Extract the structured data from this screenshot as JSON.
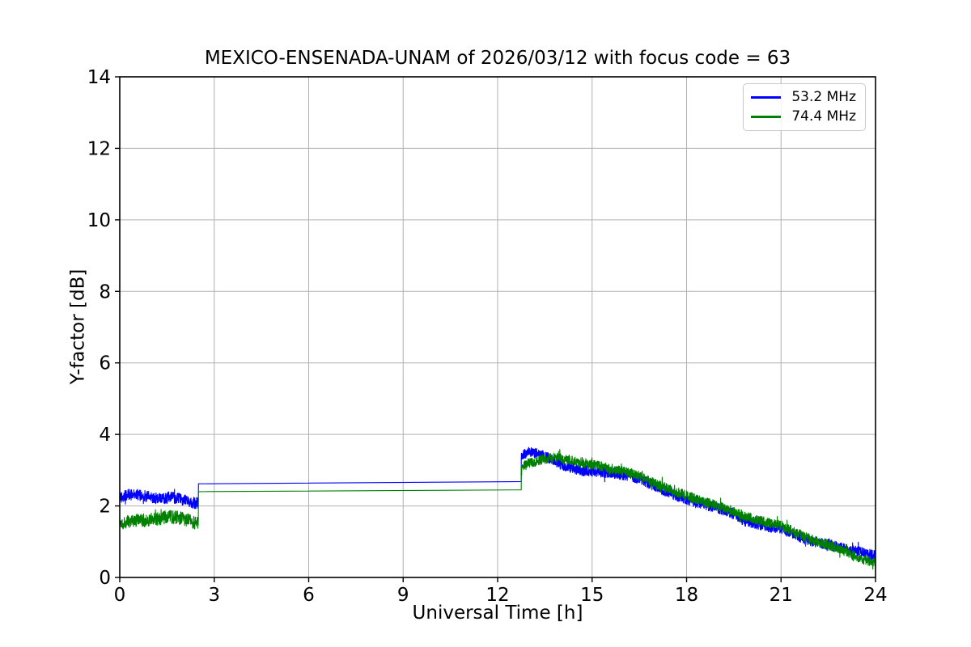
{
  "figure": {
    "background": "#ffffff"
  },
  "chart_data": {
    "type": "line",
    "title": "MEXICO-ENSENADA-UNAM of 2026/03/12 with focus code = 63",
    "xlabel": "Universal Time [h]",
    "ylabel": "Y-factor [dB]",
    "xlim": [
      0,
      24
    ],
    "ylim": [
      0,
      14
    ],
    "xticks": [
      0,
      3,
      6,
      9,
      12,
      15,
      18,
      21,
      24
    ],
    "yticks": [
      0,
      2,
      4,
      6,
      8,
      10,
      12,
      14
    ],
    "grid": true,
    "grid_color": "#b0b0b0",
    "axis_color": "#000000",
    "legend": {
      "position": "upper-right"
    },
    "series": [
      {
        "name": "53.2 MHz",
        "color": "#0000ff",
        "segments": [
          {
            "kind": "noisy",
            "noise": 0.16,
            "anchors": [
              [
                0,
                2.25
              ],
              [
                0.4,
                2.33
              ],
              [
                0.8,
                2.28
              ],
              [
                1.2,
                2.2
              ],
              [
                1.6,
                2.24
              ],
              [
                2.0,
                2.18
              ],
              [
                2.3,
                2.1
              ],
              [
                2.5,
                2.07
              ]
            ]
          },
          {
            "kind": "line",
            "anchors": [
              [
                2.5,
                2.62
              ],
              [
                12.75,
                2.68
              ]
            ]
          },
          {
            "kind": "noisy",
            "noise": 0.15,
            "anchors": [
              [
                12.75,
                3.42
              ],
              [
                13.0,
                3.5
              ],
              [
                13.3,
                3.45
              ],
              [
                13.6,
                3.35
              ],
              [
                13.9,
                3.2
              ],
              [
                14.2,
                3.1
              ],
              [
                14.6,
                3.0
              ],
              [
                15.0,
                2.97
              ],
              [
                15.4,
                2.93
              ],
              [
                15.8,
                2.9
              ],
              [
                16.2,
                2.85
              ],
              [
                16.6,
                2.72
              ],
              [
                17.0,
                2.55
              ],
              [
                17.4,
                2.38
              ],
              [
                17.8,
                2.25
              ],
              [
                18.2,
                2.12
              ],
              [
                18.6,
                2.03
              ],
              [
                19.0,
                1.93
              ],
              [
                19.4,
                1.82
              ],
              [
                19.8,
                1.6
              ],
              [
                20.2,
                1.5
              ],
              [
                20.6,
                1.42
              ],
              [
                21.0,
                1.36
              ],
              [
                21.4,
                1.22
              ],
              [
                21.8,
                1.05
              ],
              [
                22.2,
                0.97
              ],
              [
                22.6,
                0.9
              ],
              [
                23.0,
                0.8
              ],
              [
                23.4,
                0.73
              ],
              [
                23.7,
                0.68
              ],
              [
                24,
                0.6
              ]
            ]
          }
        ]
      },
      {
        "name": "74.4 MHz",
        "color": "#008000",
        "segments": [
          {
            "kind": "noisy",
            "noise": 0.19,
            "anchors": [
              [
                0,
                1.52
              ],
              [
                0.4,
                1.58
              ],
              [
                0.8,
                1.6
              ],
              [
                1.2,
                1.64
              ],
              [
                1.6,
                1.7
              ],
              [
                2.0,
                1.66
              ],
              [
                2.3,
                1.55
              ],
              [
                2.5,
                1.5
              ]
            ]
          },
          {
            "kind": "line",
            "anchors": [
              [
                2.5,
                2.4
              ],
              [
                12.75,
                2.45
              ]
            ]
          },
          {
            "kind": "noisy",
            "noise": 0.14,
            "anchors": [
              [
                12.75,
                3.08
              ],
              [
                13.0,
                3.2
              ],
              [
                13.4,
                3.3
              ],
              [
                13.8,
                3.35
              ],
              [
                14.2,
                3.3
              ],
              [
                14.6,
                3.24
              ],
              [
                15.0,
                3.15
              ],
              [
                15.4,
                3.08
              ],
              [
                15.8,
                3.0
              ],
              [
                16.2,
                2.93
              ],
              [
                16.6,
                2.8
              ],
              [
                17.0,
                2.62
              ],
              [
                17.4,
                2.48
              ],
              [
                17.8,
                2.35
              ],
              [
                18.2,
                2.22
              ],
              [
                18.6,
                2.1
              ],
              [
                19.0,
                2.0
              ],
              [
                19.4,
                1.88
              ],
              [
                19.8,
                1.72
              ],
              [
                20.2,
                1.62
              ],
              [
                20.6,
                1.52
              ],
              [
                21.0,
                1.45
              ],
              [
                21.4,
                1.28
              ],
              [
                21.8,
                1.12
              ],
              [
                22.2,
                0.98
              ],
              [
                22.6,
                0.88
              ],
              [
                23.0,
                0.75
              ],
              [
                23.4,
                0.58
              ],
              [
                23.7,
                0.48
              ],
              [
                24,
                0.42
              ]
            ]
          }
        ]
      }
    ]
  }
}
